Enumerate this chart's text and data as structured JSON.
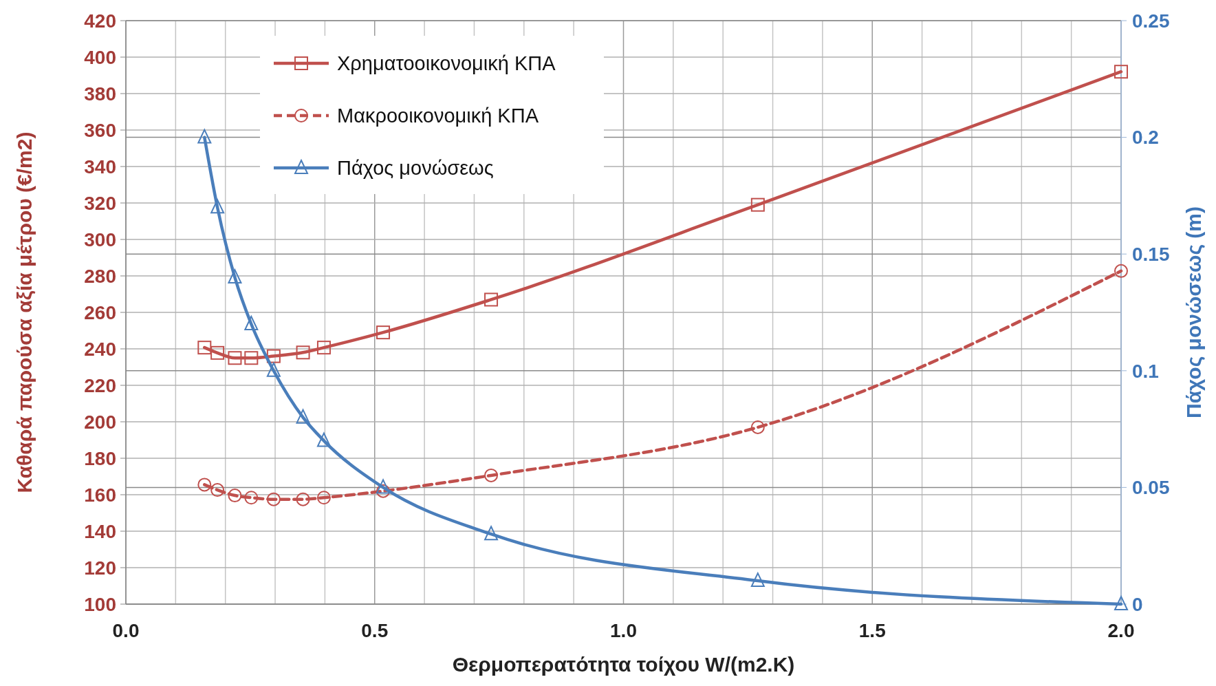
{
  "chart_data": {
    "type": "line",
    "xlabel": "Θερμοπερατότητα τοίχου W/(m2.K)",
    "ylabel": "Καθαρά παρούσα αξία μέτρου (€/m2)",
    "y2label": "Πάχος μονώσεως (m)",
    "xlim": [
      0,
      2
    ],
    "xticks": [
      {
        "value": 0,
        "label": "0.0"
      },
      {
        "value": 0.1,
        "label": null
      },
      {
        "value": 0.2,
        "label": null
      },
      {
        "value": 0.3,
        "label": null
      },
      {
        "value": 0.4,
        "label": null
      },
      {
        "value": 0.5,
        "label": "0.5"
      },
      {
        "value": 0.6,
        "label": null
      },
      {
        "value": 0.7,
        "label": null
      },
      {
        "value": 0.8,
        "label": null
      },
      {
        "value": 0.9,
        "label": null
      },
      {
        "value": 1,
        "label": "1.0"
      },
      {
        "value": 1.1,
        "label": null
      },
      {
        "value": 1.2,
        "label": null
      },
      {
        "value": 1.3,
        "label": null
      },
      {
        "value": 1.4,
        "label": null
      },
      {
        "value": 1.5,
        "label": "1.5"
      },
      {
        "value": 1.6,
        "label": null
      },
      {
        "value": 1.7,
        "label": null
      },
      {
        "value": 1.8,
        "label": null
      },
      {
        "value": 1.9,
        "label": null
      },
      {
        "value": 2,
        "label": "2.0"
      }
    ],
    "ylim": [
      100,
      420
    ],
    "yticks": [
      100,
      120,
      140,
      160,
      180,
      200,
      220,
      240,
      260,
      280,
      300,
      320,
      340,
      360,
      380,
      400,
      420
    ],
    "y2lim": [
      0,
      0.25
    ],
    "y2ticks": [
      0,
      0.05,
      0.1,
      0.15,
      0.2,
      0.25
    ],
    "x": [
      0.158,
      0.184,
      0.219,
      0.252,
      0.297,
      0.356,
      0.398,
      0.517,
      0.734,
      1.27,
      2.0
    ],
    "grid": true,
    "legend": "top left",
    "series": [
      {
        "name": "Χρηματοοικονομική ΚΠΑ",
        "color": "#c0504d",
        "marker": "square",
        "line_style": "solid",
        "values": [
          240.7,
          237.8,
          235,
          235,
          236,
          238,
          240.7,
          249,
          267,
          319,
          392
        ]
      },
      {
        "name": "Μακροοικονομική ΚΠΑ",
        "color": "#c0504d",
        "marker": "circle",
        "line_style": "dashed",
        "values": [
          165.5,
          162.6,
          159.6,
          158.4,
          157.5,
          157.5,
          158.4,
          162,
          170.6,
          197,
          282.7
        ]
      },
      {
        "name": "Πάχος μονώσεως",
        "color": "#4a7ebb",
        "marker": "triangle",
        "line_style": "solid",
        "axis": "y2",
        "values": [
          0.2,
          0.17,
          0.14,
          0.12,
          0.1,
          0.08,
          0.07,
          0.05,
          0.03,
          0.01,
          0
        ]
      }
    ]
  }
}
